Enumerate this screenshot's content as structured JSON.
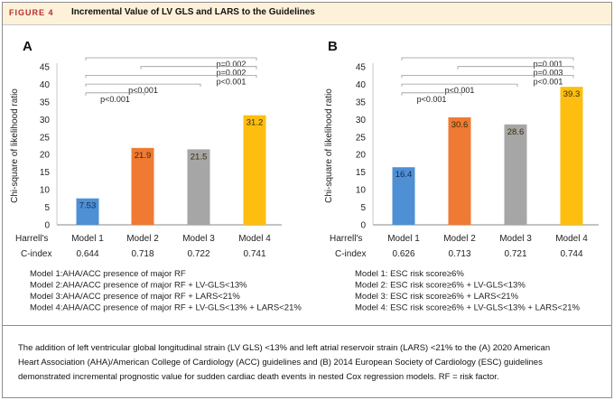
{
  "figure": {
    "label": "FIGURE 4",
    "title": "Incremental Value of LV GLS and LARS to the Guidelines"
  },
  "chart_data": [
    {
      "type": "bar",
      "panel": "A",
      "ylabel": "Chi-square of likelihood ratio",
      "ylim": [
        0,
        45
      ],
      "yticks": [
        0,
        5,
        10,
        15,
        20,
        25,
        30,
        35,
        40,
        45
      ],
      "categories": [
        "Model 1",
        "Model 2",
        "Model 3",
        "Model 4"
      ],
      "values": [
        7.53,
        21.9,
        21.5,
        31.2
      ],
      "value_labels": [
        "7.53",
        "21.9",
        "21.5",
        "31.2"
      ],
      "colors": [
        "#4f8fd3",
        "#ef7a34",
        "#a6a6a6",
        "#fdbe10"
      ],
      "cindex_label": [
        "Harrell's",
        "C-index"
      ],
      "cindex": [
        "0.644",
        "0.718",
        "0.722",
        "0.741"
      ],
      "comparisons": [
        {
          "from": 0,
          "to": 3,
          "label": "p=0.002"
        },
        {
          "from": 1,
          "to": 3,
          "label": "p=0.002"
        },
        {
          "from": 0,
          "to": 3,
          "label": "p<0.001"
        },
        {
          "from": 0,
          "to": 2,
          "label": "p<0.001"
        },
        {
          "from": 0,
          "to": 1,
          "label": "p<0.001"
        }
      ],
      "legend": [
        "Model 1:AHA/ACC presence of major RF",
        "Model 2:AHA/ACC presence of major RF + LV-GLS<13%",
        "Model 3:AHA/ACC presence of major RF + LARS<21%",
        "Model 4:AHA/ACC presence of major RF + LV-GLS<13% + LARS<21%"
      ]
    },
    {
      "type": "bar",
      "panel": "B",
      "ylabel": "Chi-square of likelihood ratio",
      "ylim": [
        0,
        45
      ],
      "yticks": [
        0,
        5,
        10,
        15,
        20,
        25,
        30,
        35,
        40,
        45
      ],
      "categories": [
        "Model 1",
        "Model 2",
        "Model 3",
        "Model 4"
      ],
      "values": [
        16.4,
        30.6,
        28.6,
        39.3
      ],
      "value_labels": [
        "16.4",
        "30.6",
        "28.6",
        "39.3"
      ],
      "colors": [
        "#4f8fd3",
        "#ef7a34",
        "#a6a6a6",
        "#fdbe10"
      ],
      "cindex_label": [
        "Harrell's",
        "C-index"
      ],
      "cindex": [
        "0.626",
        "0.713",
        "0.721",
        "0.744"
      ],
      "comparisons": [
        {
          "from": 0,
          "to": 3,
          "label": "p=0.001"
        },
        {
          "from": 1,
          "to": 3,
          "label": "p=0.003"
        },
        {
          "from": 0,
          "to": 3,
          "label": "p<0.001"
        },
        {
          "from": 0,
          "to": 2,
          "label": "p<0.001"
        },
        {
          "from": 0,
          "to": 1,
          "label": "p<0.001"
        }
      ],
      "legend": [
        "Model 1: ESC risk score≥6%",
        "Model 2: ESC risk score≥6% + LV-GLS<13%",
        "Model 3: ESC risk score≥6% + LARS<21%",
        "Model 4: ESC risk score≥6% + LV-GLS<13% + LARS<21%"
      ]
    }
  ],
  "caption": [
    "The addition of left ventricular global longitudinal strain (LV GLS) <13% and left atrial reservoir strain (LARS) <21% to the (A) 2020 American",
    "Heart Association (AHA)/American College of Cardiology (ACC) guidelines and (B) 2014 European Society of Cardiology (ESC) guidelines",
    "demonstrated incremental prognostic value for sudden cardiac death events in nested Cox regression models. RF = risk factor."
  ]
}
